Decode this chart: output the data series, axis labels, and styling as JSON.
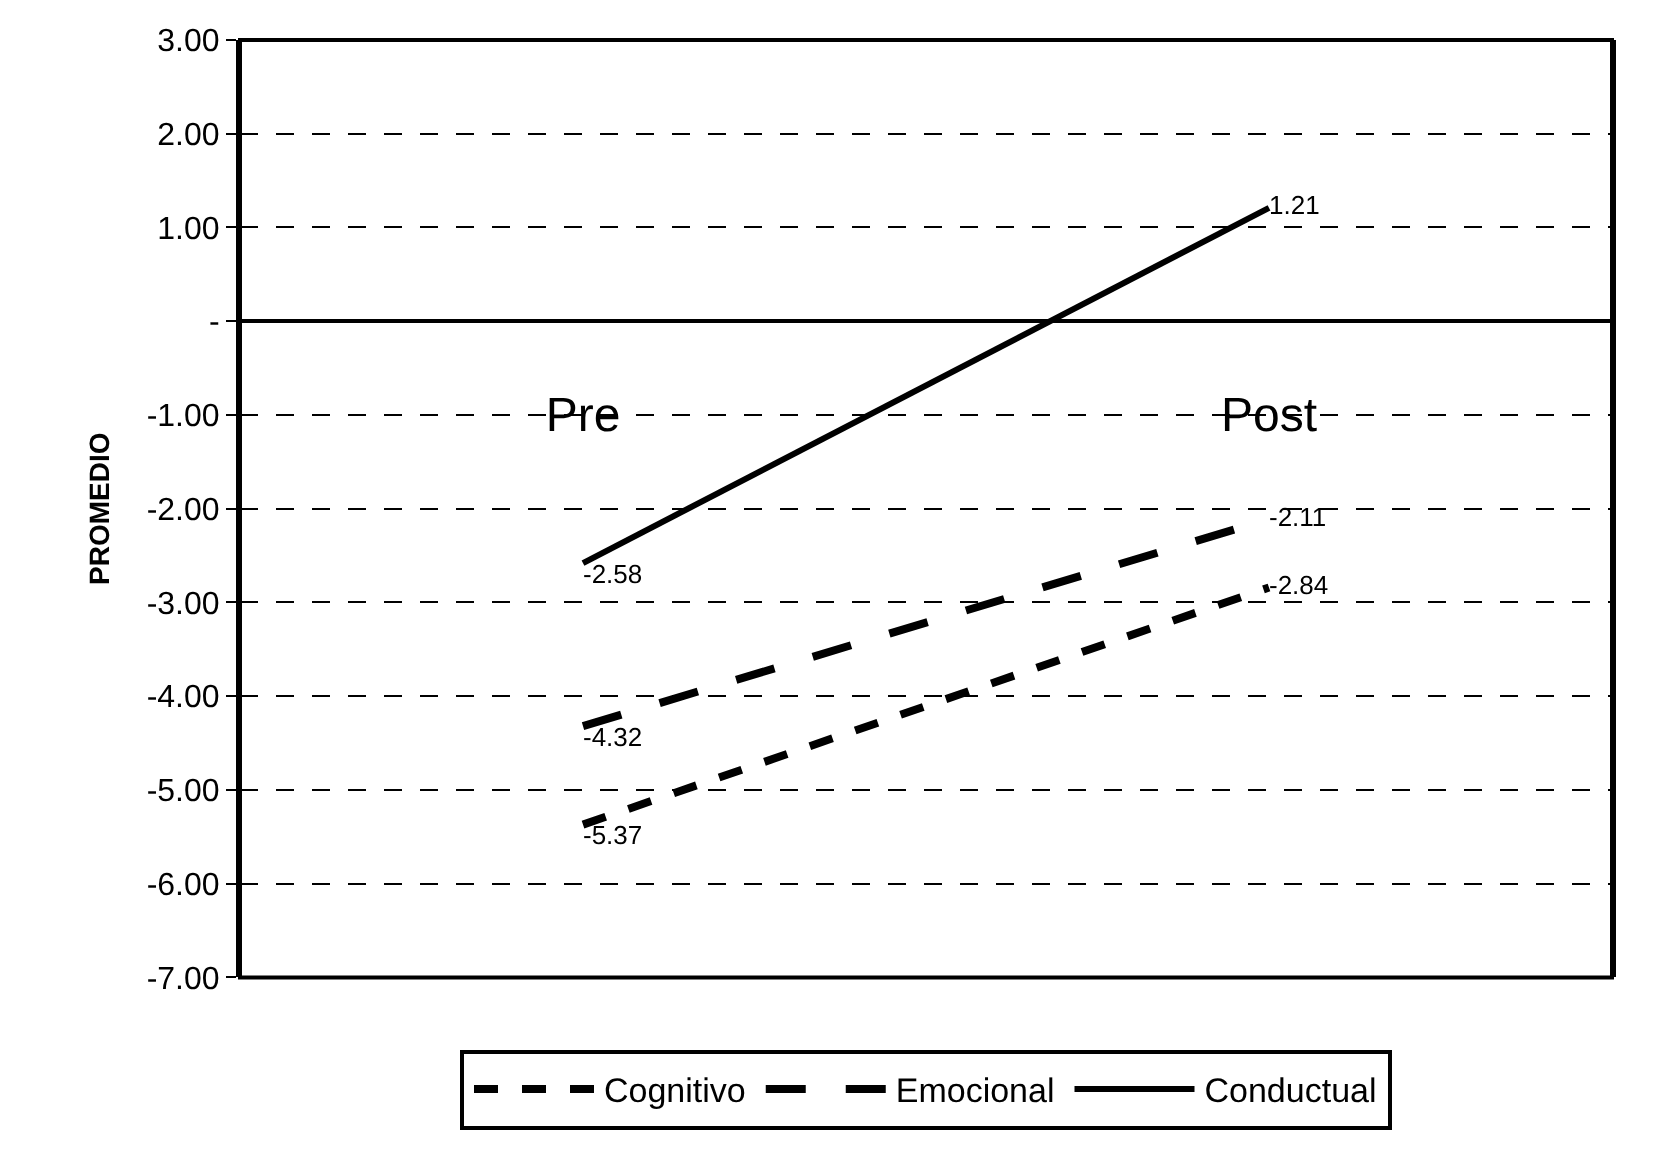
{
  "chart_data": {
    "type": "line",
    "ylabel": "PROMEDIO",
    "categories": [
      "Pre",
      "Post"
    ],
    "series": [
      {
        "name": "Cognitivo",
        "color": "#000000",
        "line_style": "dotted",
        "values": [
          -5.37,
          -2.84
        ]
      },
      {
        "name": "Emocional",
        "color": "#000000",
        "line_style": "dashed",
        "values": [
          -4.32,
          -2.11
        ]
      },
      {
        "name": "Conductual",
        "color": "#000000",
        "line_style": "solid",
        "values": [
          -2.58,
          1.21
        ]
      }
    ],
    "ylim": [
      -7,
      3
    ],
    "yticks": [
      {
        "value": 3,
        "label": "3.00"
      },
      {
        "value": 2,
        "label": "2.00"
      },
      {
        "value": 1,
        "label": "1.00"
      },
      {
        "value": 0,
        "label": "-"
      },
      {
        "value": -1,
        "label": "-1.00"
      },
      {
        "value": -2,
        "label": "-2.00"
      },
      {
        "value": -3,
        "label": "-3.00"
      },
      {
        "value": -4,
        "label": "-4.00"
      },
      {
        "value": -5,
        "label": "-5.00"
      },
      {
        "value": -6,
        "label": "-6.00"
      },
      {
        "value": -7,
        "label": "-7.00"
      }
    ],
    "grid": "y",
    "legend": "bottom",
    "data_labels": true,
    "marker": "none"
  }
}
